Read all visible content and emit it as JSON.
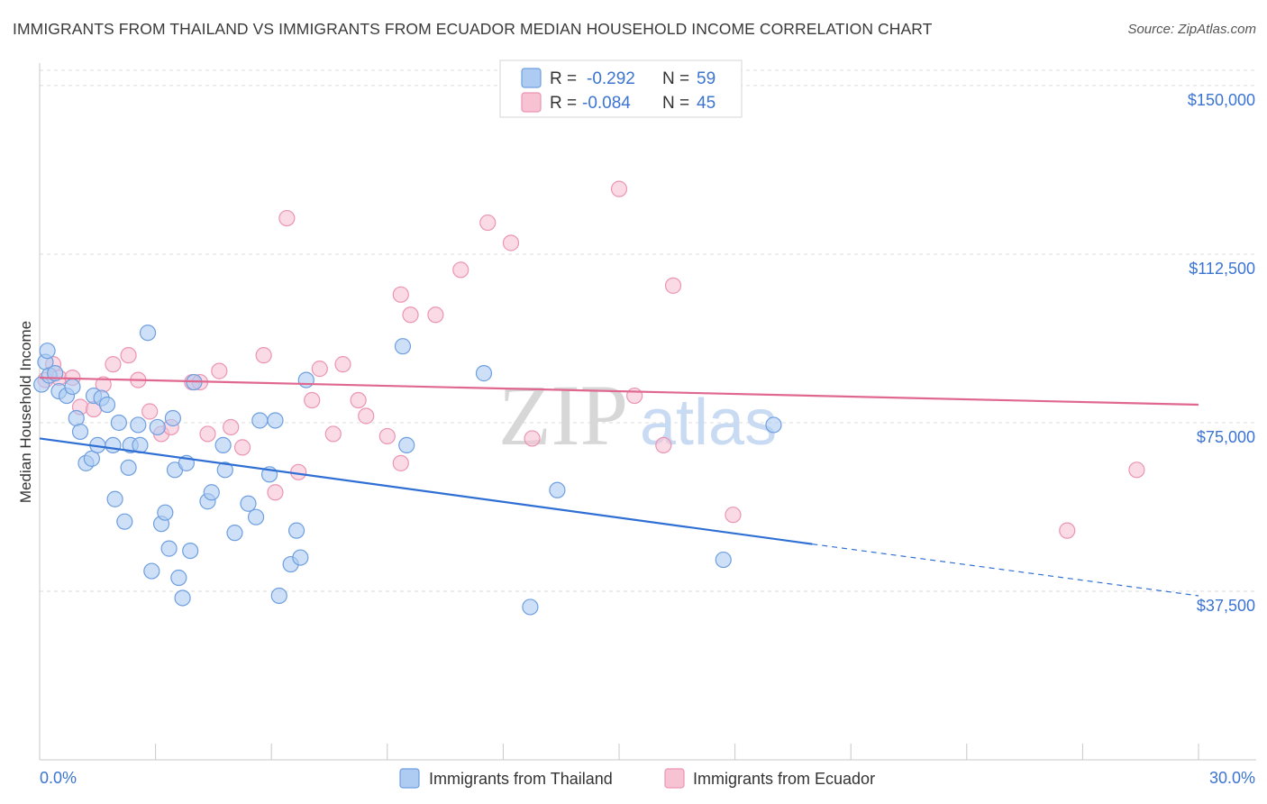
{
  "title": "IMMIGRANTS FROM THAILAND VS IMMIGRANTS FROM ECUADOR MEDIAN HOUSEHOLD INCOME CORRELATION CHART",
  "source": "Source: ZipAtlas.com",
  "watermark": {
    "zip": "ZIP",
    "atlas": "atlas"
  },
  "legend_stats": [
    {
      "r_label": "R =",
      "r_value": "-0.292",
      "n_label": "N =",
      "n_value": "59"
    },
    {
      "r_label": "R =",
      "r_value": "-0.084",
      "n_label": "N =",
      "n_value": "45"
    }
  ],
  "colors": {
    "thailand_fill": "#aecbf2",
    "thailand_stroke": "#6e9fe0",
    "thailand_line": "#2f6fd4",
    "ecuador_fill": "#f7c3d3",
    "ecuador_stroke": "#ec94b3",
    "ecuador_line": "#e0688f",
    "axis_text": "#3b74d1",
    "grid": "#dcdcdc"
  },
  "chart_data": {
    "type": "scatter",
    "title": "IMMIGRANTS FROM THAILAND VS IMMIGRANTS FROM ECUADOR MEDIAN HOUSEHOLD INCOME CORRELATION CHART",
    "xlabel": "",
    "ylabel": "Median Household Income",
    "xlim": [
      0,
      30
    ],
    "ylim": [
      0,
      155000
    ],
    "x_tick_labels": [
      "0.0%",
      "30.0%"
    ],
    "y_ticks": [
      37500,
      75000,
      112500,
      150000
    ],
    "y_tick_labels": [
      "$37,500",
      "$75,000",
      "$112,500",
      "$150,000"
    ],
    "grid": true,
    "legend_position": "bottom-center",
    "series": [
      {
        "name": "Immigrants from Thailand",
        "points": [
          [
            0.05,
            83500
          ],
          [
            0.15,
            88500
          ],
          [
            0.25,
            85500
          ],
          [
            0.2,
            91000
          ],
          [
            0.4,
            86000
          ],
          [
            0.5,
            82000
          ],
          [
            0.7,
            81000
          ],
          [
            0.85,
            83000
          ],
          [
            0.95,
            76000
          ],
          [
            1.05,
            73000
          ],
          [
            1.2,
            66000
          ],
          [
            1.35,
            67000
          ],
          [
            1.4,
            81000
          ],
          [
            1.5,
            70000
          ],
          [
            1.6,
            80500
          ],
          [
            1.75,
            79000
          ],
          [
            1.9,
            70000
          ],
          [
            1.95,
            58000
          ],
          [
            2.05,
            75000
          ],
          [
            2.2,
            53000
          ],
          [
            2.3,
            65000
          ],
          [
            2.35,
            70000
          ],
          [
            2.55,
            74500
          ],
          [
            2.6,
            70000
          ],
          [
            2.8,
            95000
          ],
          [
            2.9,
            42000
          ],
          [
            3.05,
            74000
          ],
          [
            3.15,
            52500
          ],
          [
            3.25,
            55000
          ],
          [
            3.35,
            47000
          ],
          [
            3.45,
            76000
          ],
          [
            3.5,
            64500
          ],
          [
            3.6,
            40500
          ],
          [
            3.7,
            36000
          ],
          [
            3.8,
            66000
          ],
          [
            3.9,
            46500
          ],
          [
            4.0,
            84000
          ],
          [
            4.35,
            57500
          ],
          [
            4.45,
            59500
          ],
          [
            4.75,
            70000
          ],
          [
            4.8,
            64500
          ],
          [
            5.05,
            50500
          ],
          [
            5.4,
            57000
          ],
          [
            5.6,
            54000
          ],
          [
            5.7,
            75500
          ],
          [
            5.95,
            63500
          ],
          [
            6.1,
            75500
          ],
          [
            6.2,
            36500
          ],
          [
            6.5,
            43500
          ],
          [
            6.65,
            51000
          ],
          [
            6.75,
            45000
          ],
          [
            6.9,
            84500
          ],
          [
            9.4,
            92000
          ],
          [
            9.5,
            70000
          ],
          [
            11.5,
            86000
          ],
          [
            13.4,
            60000
          ],
          [
            12.7,
            34000
          ],
          [
            17.7,
            44500
          ],
          [
            19.0,
            74500
          ]
        ],
        "trend": {
          "x_start": 0,
          "y_start": 71500,
          "x_solid_end": 20.0,
          "y_solid_end": 48000,
          "x_end": 30,
          "y_end": 36500
        }
      },
      {
        "name": "Immigrants from Ecuador",
        "points": [
          [
            0.15,
            84500
          ],
          [
            0.35,
            88000
          ],
          [
            0.5,
            85000
          ],
          [
            0.85,
            85000
          ],
          [
            1.05,
            78500
          ],
          [
            1.4,
            78000
          ],
          [
            1.65,
            83500
          ],
          [
            1.9,
            88000
          ],
          [
            2.3,
            90000
          ],
          [
            2.55,
            84500
          ],
          [
            2.85,
            77500
          ],
          [
            3.15,
            72500
          ],
          [
            3.4,
            74000
          ],
          [
            3.95,
            84000
          ],
          [
            4.15,
            84000
          ],
          [
            4.35,
            72500
          ],
          [
            4.65,
            86500
          ],
          [
            4.95,
            74000
          ],
          [
            5.25,
            69500
          ],
          [
            5.8,
            90000
          ],
          [
            6.1,
            59500
          ],
          [
            6.4,
            120500
          ],
          [
            6.7,
            64000
          ],
          [
            7.05,
            80000
          ],
          [
            7.25,
            87000
          ],
          [
            7.6,
            72500
          ],
          [
            7.85,
            88000
          ],
          [
            8.25,
            80000
          ],
          [
            8.45,
            76500
          ],
          [
            9.0,
            72000
          ],
          [
            9.35,
            103500
          ],
          [
            9.6,
            99000
          ],
          [
            9.35,
            66000
          ],
          [
            10.25,
            99000
          ],
          [
            10.9,
            109000
          ],
          [
            11.6,
            119500
          ],
          [
            12.2,
            115000
          ],
          [
            12.75,
            71500
          ],
          [
            15.0,
            127000
          ],
          [
            15.4,
            81000
          ],
          [
            16.15,
            70000
          ],
          [
            16.4,
            105500
          ],
          [
            17.95,
            54500
          ],
          [
            26.6,
            51000
          ],
          [
            28.4,
            64500
          ]
        ],
        "trend": {
          "x_start": 0,
          "y_start": 85000,
          "x_end": 30,
          "y_end": 79000
        }
      }
    ]
  }
}
